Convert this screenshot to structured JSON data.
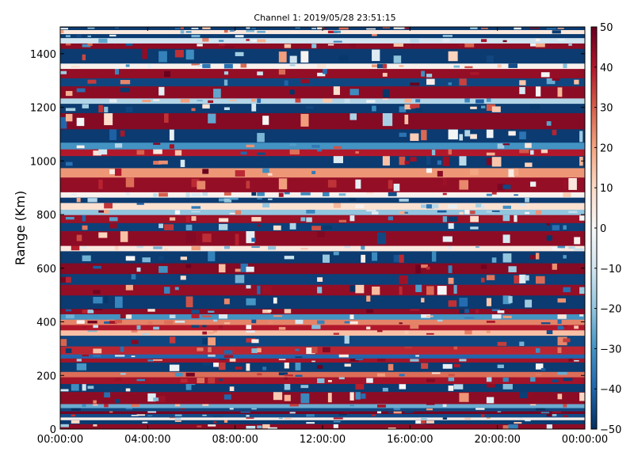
{
  "chart_data": {
    "type": "heatmap",
    "title": "Channel 1: 2019/05/28 23:51:15",
    "xlabel": "",
    "ylabel": "Range (Km)",
    "x_ticks": [
      "00:00:00",
      "04:00:00",
      "08:00:00",
      "12:00:00",
      "16:00:00",
      "20:00:00",
      "00:00:00"
    ],
    "y_ticks": [
      "0",
      "200",
      "400",
      "600",
      "800",
      "1000",
      "1200",
      "1400"
    ],
    "y_tick_values": [
      0,
      200,
      400,
      600,
      800,
      1000,
      1200,
      1400
    ],
    "xlim_hours": [
      0,
      24
    ],
    "ylim": [
      0,
      1500
    ],
    "colorbar": {
      "range": [
        -50,
        50
      ],
      "ticks": [
        "50",
        "40",
        "30",
        "20",
        "10",
        "0",
        "−10",
        "−20",
        "−30",
        "−40",
        "−50"
      ],
      "tick_values": [
        50,
        40,
        30,
        20,
        10,
        0,
        -10,
        -20,
        -30,
        -40,
        -50
      ],
      "colormap": "RdBu_r",
      "color_stops": [
        "#053061",
        "#2166ac",
        "#4393c3",
        "#92c5de",
        "#d1e5f0",
        "#f7f7f7",
        "#fddbc7",
        "#f4a582",
        "#d6604d",
        "#b2182b",
        "#67001f"
      ]
    },
    "range_bins": [
      {
        "from": 0,
        "to": 20,
        "value": 45
      },
      {
        "from": 20,
        "to": 35,
        "value": -48
      },
      {
        "from": 35,
        "to": 45,
        "value": 3
      },
      {
        "from": 45,
        "to": 58,
        "value": -45
      },
      {
        "from": 58,
        "to": 68,
        "value": 48
      },
      {
        "from": 68,
        "to": 80,
        "value": -46
      },
      {
        "from": 80,
        "to": 95,
        "value": -25
      },
      {
        "from": 95,
        "to": 140,
        "value": 45
      },
      {
        "from": 140,
        "to": 170,
        "value": -48
      },
      {
        "from": 170,
        "to": 195,
        "value": 42
      },
      {
        "from": 195,
        "to": 215,
        "value": 28
      },
      {
        "from": 215,
        "to": 250,
        "value": -48
      },
      {
        "from": 250,
        "to": 265,
        "value": 42
      },
      {
        "from": 265,
        "to": 280,
        "value": -40
      },
      {
        "from": 280,
        "to": 310,
        "value": 38
      },
      {
        "from": 310,
        "to": 350,
        "value": -46
      },
      {
        "from": 350,
        "to": 370,
        "value": 15
      },
      {
        "from": 370,
        "to": 390,
        "value": 40
      },
      {
        "from": 390,
        "to": 410,
        "value": 25
      },
      {
        "from": 410,
        "to": 430,
        "value": -30
      },
      {
        "from": 430,
        "to": 450,
        "value": 45
      },
      {
        "from": 450,
        "to": 500,
        "value": -48
      },
      {
        "from": 500,
        "to": 540,
        "value": 44
      },
      {
        "from": 540,
        "to": 580,
        "value": -47
      },
      {
        "from": 580,
        "to": 620,
        "value": 46
      },
      {
        "from": 620,
        "to": 665,
        "value": -48
      },
      {
        "from": 665,
        "to": 685,
        "value": 5
      },
      {
        "from": 685,
        "to": 740,
        "value": 45
      },
      {
        "from": 740,
        "to": 770,
        "value": -47
      },
      {
        "from": 770,
        "to": 800,
        "value": 43
      },
      {
        "from": 800,
        "to": 820,
        "value": -20
      },
      {
        "from": 820,
        "to": 845,
        "value": 8
      },
      {
        "from": 845,
        "to": 865,
        "value": -48
      },
      {
        "from": 865,
        "to": 885,
        "value": 2
      },
      {
        "from": 885,
        "to": 940,
        "value": 44
      },
      {
        "from": 940,
        "to": 975,
        "value": 22
      },
      {
        "from": 975,
        "to": 1020,
        "value": -48
      },
      {
        "from": 1020,
        "to": 1045,
        "value": 40
      },
      {
        "from": 1045,
        "to": 1070,
        "value": -30
      },
      {
        "from": 1070,
        "to": 1120,
        "value": -48
      },
      {
        "from": 1120,
        "to": 1180,
        "value": 46
      },
      {
        "from": 1180,
        "to": 1215,
        "value": -48
      },
      {
        "from": 1215,
        "to": 1235,
        "value": -15
      },
      {
        "from": 1235,
        "to": 1280,
        "value": 45
      },
      {
        "from": 1280,
        "to": 1310,
        "value": -46
      },
      {
        "from": 1310,
        "to": 1345,
        "value": 44
      },
      {
        "from": 1345,
        "to": 1365,
        "value": 2
      },
      {
        "from": 1365,
        "to": 1420,
        "value": -48
      },
      {
        "from": 1420,
        "to": 1440,
        "value": 45
      },
      {
        "from": 1440,
        "to": 1460,
        "value": -10
      },
      {
        "from": 1460,
        "to": 1475,
        "value": -48
      },
      {
        "from": 1475,
        "to": 1490,
        "value": 5
      },
      {
        "from": 1490,
        "to": 1500,
        "value": -48
      }
    ],
    "grid": false,
    "legend": "colorbar-right"
  }
}
